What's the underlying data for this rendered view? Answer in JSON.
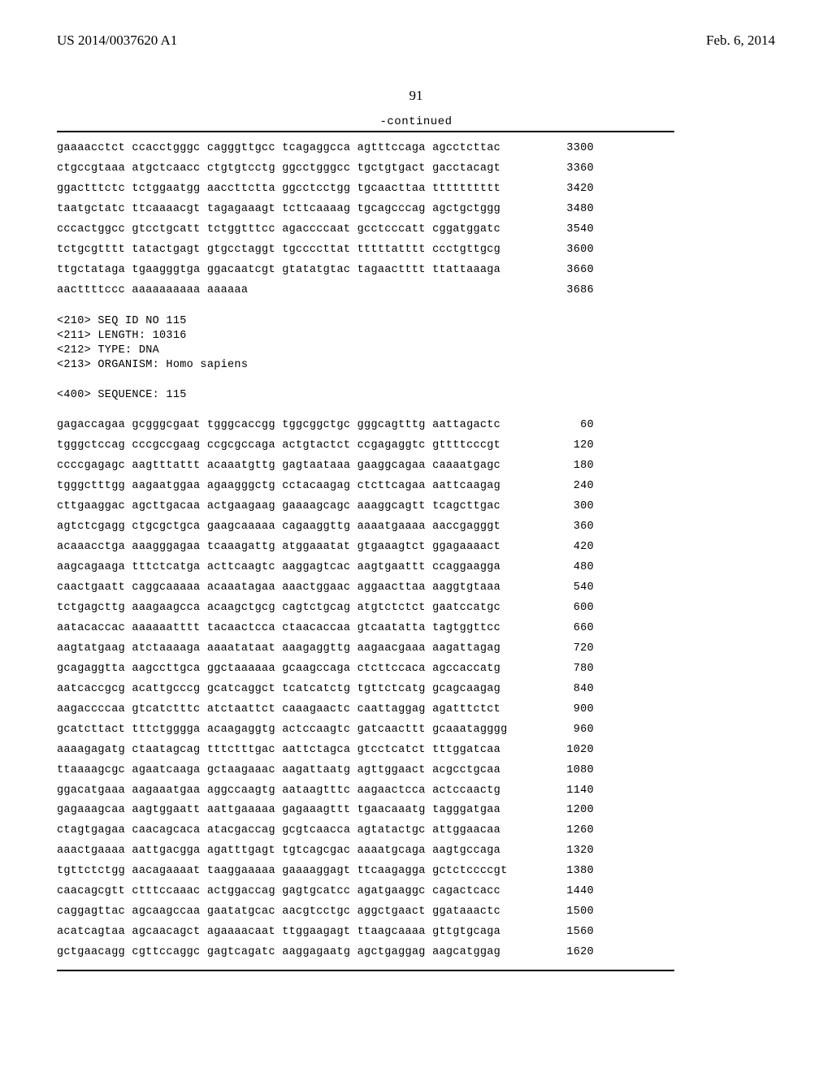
{
  "header": {
    "pub_number": "US 2014/0037620 A1",
    "pub_date": "Feb. 6, 2014"
  },
  "page_number": "91",
  "continued_label": "-continued",
  "seq_block1": {
    "lines": [
      {
        "seq": "gaaaacctct ccacctgggc cagggttgcc tcagaggcca agtttccaga agcctcttac",
        "num": "3300"
      },
      {
        "seq": "ctgccgtaaa atgctcaacc ctgtgtcctg ggcctgggcc tgctgtgact gacctacagt",
        "num": "3360"
      },
      {
        "seq": "ggactttctc tctggaatgg aaccttctta ggcctcctgg tgcaacttaa tttttttttt",
        "num": "3420"
      },
      {
        "seq": "taatgctatc ttcaaaacgt tagagaaagt tcttcaaaag tgcagcccag agctgctggg",
        "num": "3480"
      },
      {
        "seq": "cccactggcc gtcctgcatt tctggtttcc agaccccaat gcctcccatt cggatggatc",
        "num": "3540"
      },
      {
        "seq": "tctgcgtttt tatactgagt gtgcctaggt tgccccttat tttttatttt ccctgttgcg",
        "num": "3600"
      },
      {
        "seq": "ttgctataga tgaagggtga ggacaatcgt gtatatgtac tagaactttt ttattaaaga",
        "num": "3660"
      },
      {
        "seq": "aacttttccc aaaaaaaaaa aaaaaa",
        "num": "3686"
      }
    ]
  },
  "meta": {
    "lines": [
      "<210> SEQ ID NO 115",
      "<211> LENGTH: 10316",
      "<212> TYPE: DNA",
      "<213> ORGANISM: Homo sapiens",
      "",
      "<400> SEQUENCE: 115"
    ]
  },
  "seq_block2": {
    "lines": [
      {
        "seq": "gagaccagaa gcgggcgaat tgggcaccgg tggcggctgc gggcagtttg aattagactc",
        "num": "60"
      },
      {
        "seq": "tgggctccag cccgccgaag ccgcgccaga actgtactct ccgagaggtc gttttcccgt",
        "num": "120"
      },
      {
        "seq": "ccccgagagc aagtttattt acaaatgttg gagtaataaa gaaggcagaa caaaatgagc",
        "num": "180"
      },
      {
        "seq": "tgggctttgg aagaatggaa agaagggctg cctacaagag ctcttcagaa aattcaagag",
        "num": "240"
      },
      {
        "seq": "cttgaaggac agcttgacaa actgaagaag gaaaagcagc aaaggcagtt tcagcttgac",
        "num": "300"
      },
      {
        "seq": "agtctcgagg ctgcgctgca gaagcaaaaa cagaaggttg aaaatgaaaa aaccgagggt",
        "num": "360"
      },
      {
        "seq": "acaaacctga aaagggagaa tcaaagattg atggaaatat gtgaaagtct ggagaaaact",
        "num": "420"
      },
      {
        "seq": "aagcagaaga tttctcatga acttcaagtc aaggagtcac aagtgaattt ccaggaagga",
        "num": "480"
      },
      {
        "seq": "caactgaatt caggcaaaaa acaaatagaa aaactggaac aggaacttaa aaggtgtaaa",
        "num": "540"
      },
      {
        "seq": "tctgagcttg aaagaagcca acaagctgcg cagtctgcag atgtctctct gaatccatgc",
        "num": "600"
      },
      {
        "seq": "aatacaccac aaaaaatttt tacaactcca ctaacaccaa gtcaatatta tagtggttcc",
        "num": "660"
      },
      {
        "seq": "aagtatgaag atctaaaaga aaaatataat aaagaggttg aagaacgaaa aagattagag",
        "num": "720"
      },
      {
        "seq": "gcagaggtta aagccttgca ggctaaaaaa gcaagccaga ctcttccaca agccaccatg",
        "num": "780"
      },
      {
        "seq": "aatcaccgcg acattgcccg gcatcaggct tcatcatctg tgttctcatg gcagcaagag",
        "num": "840"
      },
      {
        "seq": "aagaccccaa gtcatctttc atctaattct caaagaactc caattaggag agatttctct",
        "num": "900"
      },
      {
        "seq": "gcatcttact tttctgggga acaagaggtg actccaagtc gatcaacttt gcaaatagggg",
        "num": "960"
      },
      {
        "seq": "aaaagagatg ctaatagcag tttctttgac aattctagca gtcctcatct tttggatcaa",
        "num": "1020"
      },
      {
        "seq": "ttaaaagcgc agaatcaaga gctaagaaac aagattaatg agttggaact acgcctgcaa",
        "num": "1080"
      },
      {
        "seq": "ggacatgaaa aagaaatgaa aggccaagtg aataagtttc aagaactcca actccaactg",
        "num": "1140"
      },
      {
        "seq": "gagaaagcaa aagtggaatt aattgaaaaa gagaaagttt tgaacaaatg tagggatgaa",
        "num": "1200"
      },
      {
        "seq": "ctagtgagaa caacagcaca atacgaccag gcgtcaacca agtatactgc attggaacaa",
        "num": "1260"
      },
      {
        "seq": "aaactgaaaa aattgacgga agatttgagt tgtcagcgac aaaatgcaga aagtgccaga",
        "num": "1320"
      },
      {
        "seq": "tgttctctgg aacagaaaat taaggaaaaa gaaaaggagt ttcaagagga gctctccccgt",
        "num": "1380"
      },
      {
        "seq": "caacagcgtt ctttccaaac actggaccag gagtgcatcc agatgaaggc cagactcacc",
        "num": "1440"
      },
      {
        "seq": "caggagttac agcaagccaa gaatatgcac aacgtcctgc aggctgaact ggataaactc",
        "num": "1500"
      },
      {
        "seq": "acatcagtaa agcaacagct agaaaacaat ttggaagagt ttaagcaaaa gttgtgcaga",
        "num": "1560"
      },
      {
        "seq": "gctgaacagg cgttccaggc gagtcagatc aaggagaatg agctgaggag aagcatggag",
        "num": "1620"
      }
    ]
  }
}
